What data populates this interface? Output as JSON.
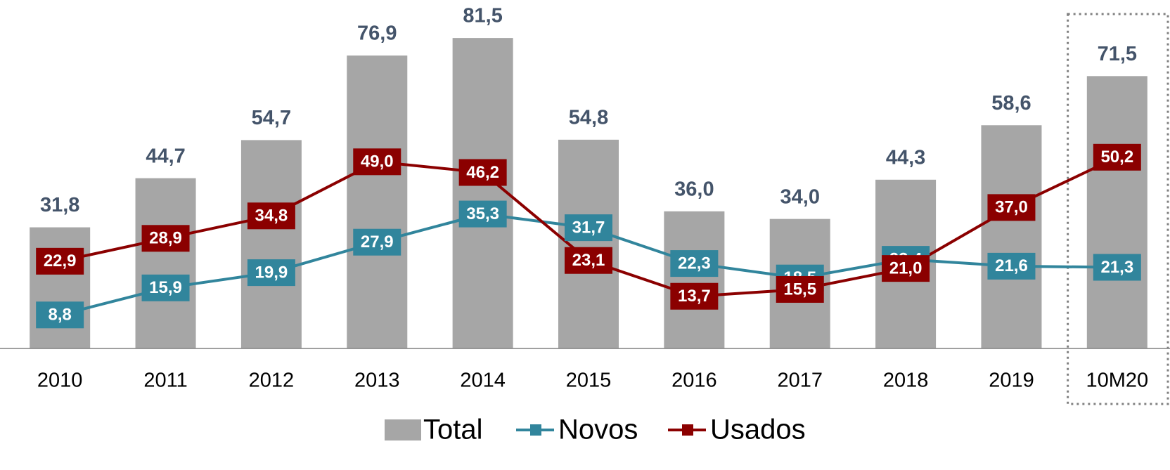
{
  "chart_data": {
    "type": "bar",
    "categories": [
      "2010",
      "2011",
      "2012",
      "2013",
      "2014",
      "2015",
      "2016",
      "2017",
      "2018",
      "2019",
      "10M20"
    ],
    "series": [
      {
        "name": "Total",
        "type": "bar",
        "color": "#a6a6a6",
        "values": [
          31.8,
          44.7,
          54.7,
          76.9,
          81.5,
          54.8,
          36.0,
          34.0,
          44.3,
          58.6,
          71.5
        ],
        "value_labels": [
          "31,8",
          "44,7",
          "54,7",
          "76,9",
          "81,5",
          "54,8",
          "36,0",
          "34,0",
          "44,3",
          "58,6",
          "71,5"
        ]
      },
      {
        "name": "Novos",
        "type": "line",
        "color": "#31859c",
        "values": [
          8.8,
          15.9,
          19.9,
          27.9,
          35.3,
          31.7,
          22.3,
          18.5,
          23.4,
          21.6,
          21.3
        ],
        "value_labels": [
          "8,8",
          "15,9",
          "19,9",
          "27,9",
          "35,3",
          "31,7",
          "22,3",
          "18,5",
          "23,4",
          "21,6",
          "21,3"
        ]
      },
      {
        "name": "Usados",
        "type": "line",
        "color": "#8b0000",
        "values": [
          22.9,
          28.9,
          34.8,
          49.0,
          46.2,
          23.1,
          13.7,
          15.5,
          21.0,
          37.0,
          50.2
        ],
        "value_labels": [
          "22,9",
          "28,9",
          "34,8",
          "49,0",
          "46,2",
          "23,1",
          "13,7",
          "15,5",
          "21,0",
          "37,0",
          "50,2"
        ]
      }
    ],
    "ylim": [
      0,
      90
    ]
  }
}
